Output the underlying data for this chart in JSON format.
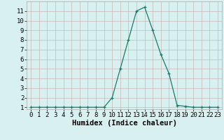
{
  "title": "",
  "xlabel": "Humidex (Indice chaleur)",
  "ylabel": "",
  "x_values": [
    0,
    1,
    2,
    3,
    4,
    5,
    6,
    7,
    8,
    9,
    10,
    11,
    12,
    13,
    14,
    15,
    16,
    17,
    18,
    19,
    20,
    21,
    22,
    23
  ],
  "y_values": [
    1,
    1,
    1,
    1,
    1,
    1,
    1,
    1,
    1,
    1,
    2,
    5,
    8,
    11,
    11.4,
    9,
    6.5,
    4.5,
    1.2,
    1.1,
    1,
    1,
    1,
    1
  ],
  "line_color": "#1a7a6a",
  "bg_color": "#d9f0f0",
  "grid_color": "#c4a8a8",
  "ylim": [
    0.8,
    12
  ],
  "yticks": [
    1,
    2,
    3,
    4,
    5,
    6,
    7,
    8,
    9,
    10,
    11
  ],
  "xlim": [
    -0.5,
    23.5
  ],
  "xticks": [
    0,
    1,
    2,
    3,
    4,
    5,
    6,
    7,
    8,
    9,
    10,
    11,
    12,
    13,
    14,
    15,
    16,
    17,
    18,
    19,
    20,
    21,
    22,
    23
  ],
  "tick_fontsize": 6.5,
  "xlabel_fontsize": 7.5
}
